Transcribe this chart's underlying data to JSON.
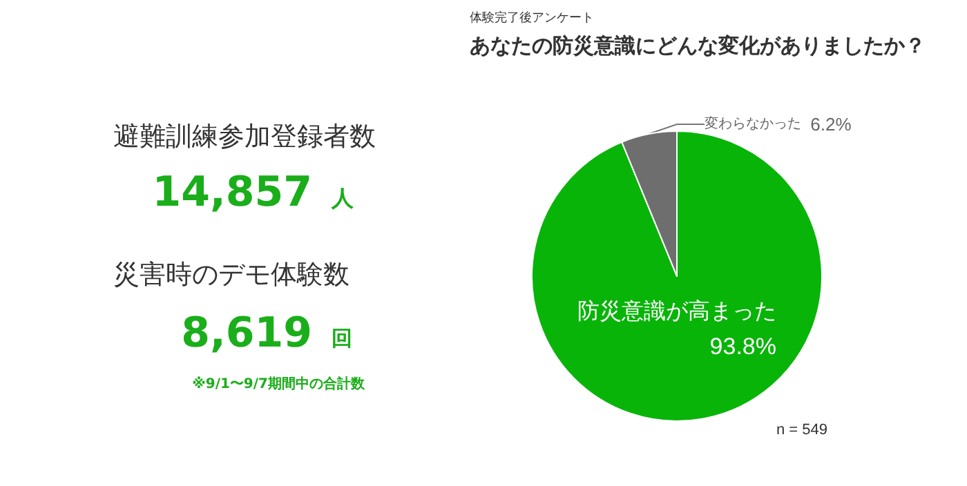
{
  "chart_data": [
    {
      "type": "other",
      "annotations": [
        "避難訓練参加登録者数",
        "14,857",
        "人",
        "災害時のデモ体験数",
        "8,619",
        "回",
        "※9/1〜9/7期間中の合計数"
      ]
    },
    {
      "type": "pie",
      "subtitle": "体験完了後アンケート",
      "title": "あなたの防災意識にどんな変化がありましたか？",
      "categories": [
        "防災意識が高まった",
        "変わらなかった"
      ],
      "values": [
        93.8,
        6.2
      ],
      "colors": [
        "#09b409",
        "#6e6e6e"
      ],
      "value_labels": [
        "93.8%",
        "6.2%"
      ],
      "annotations": [
        "n = 549"
      ]
    }
  ]
}
